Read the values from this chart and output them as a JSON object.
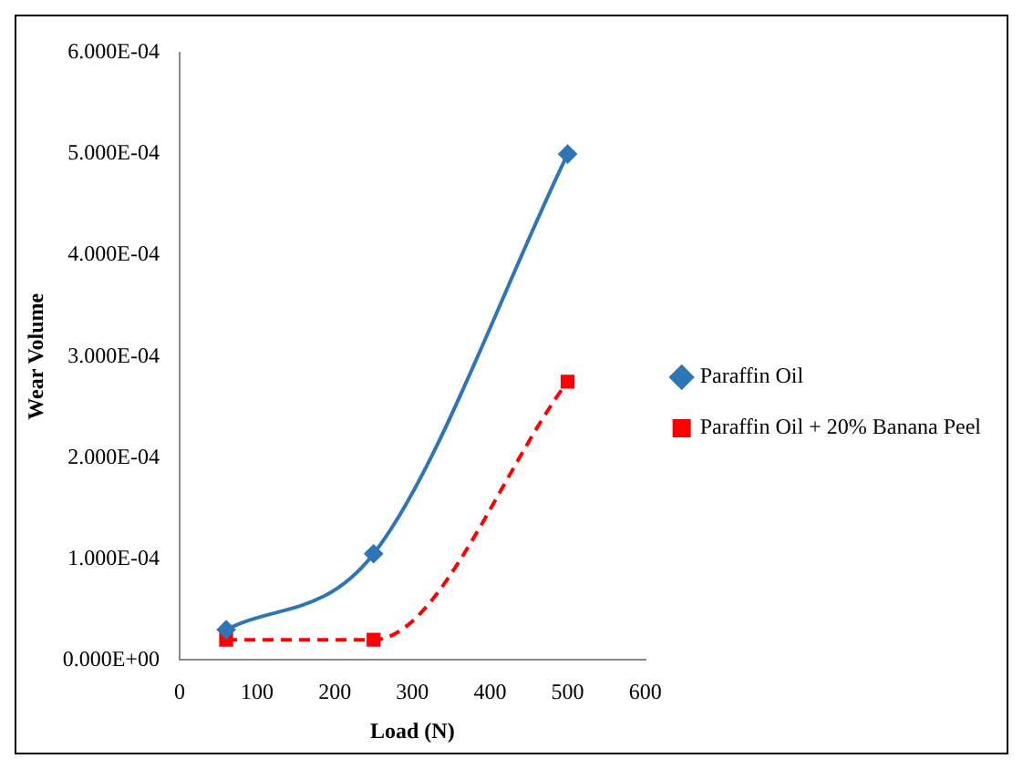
{
  "chart_data": {
    "type": "line",
    "xlabel": "Load (N)",
    "ylabel": "Wear Volume",
    "xlim": [
      0,
      600
    ],
    "xticks": [
      0,
      100,
      200,
      300,
      400,
      500,
      600
    ],
    "ylim": [
      0,
      0.0006
    ],
    "yticks": [
      {
        "value": 0,
        "label": "0.000E+00"
      },
      {
        "value": 0.0001,
        "label": "1.000E-04"
      },
      {
        "value": 0.0002,
        "label": "2.000E-04"
      },
      {
        "value": 0.0003,
        "label": "3.000E-04"
      },
      {
        "value": 0.0004,
        "label": "4.000E-04"
      },
      {
        "value": 0.0005,
        "label": "5.000E-04"
      },
      {
        "value": 0.0006,
        "label": "6.000E-04"
      }
    ],
    "grid": false,
    "legend": "right",
    "series": [
      {
        "name": "Paraffin Oil",
        "color": "#2e75b6",
        "x": [
          60,
          250,
          500
        ],
        "values": [
          3e-05,
          0.000105,
          0.0005
        ],
        "marker": "diamond",
        "line_style": "solid"
      },
      {
        "name": "Paraffin Oil + 20% Banana Peel",
        "color": "#ff0000",
        "x": [
          60,
          250,
          500
        ],
        "values": [
          2e-05,
          2e-05,
          0.000275
        ],
        "marker": "square",
        "line_style": "dashed"
      }
    ]
  }
}
